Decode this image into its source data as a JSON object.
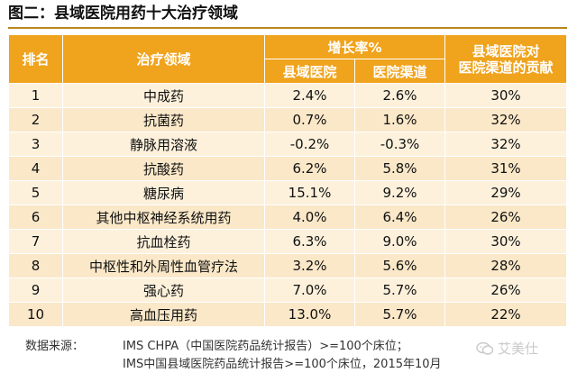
{
  "title": "图二：县域医院用药十大治疗领域",
  "table": {
    "headers": {
      "rank": "排名",
      "area": "治疗领域",
      "growth_group": "增长率%",
      "county_growth": "县域医院",
      "hospital_channel": "医院渠道",
      "contribution_line1": "县域医院对",
      "contribution_line2": "医院渠道的贡献"
    },
    "rows": [
      {
        "rank": "1",
        "area": "中成药",
        "county": "2.4%",
        "hospital": "2.6%",
        "contribution": "30%"
      },
      {
        "rank": "2",
        "area": "抗菌药",
        "county": "0.7%",
        "hospital": "1.6%",
        "contribution": "32%"
      },
      {
        "rank": "3",
        "area": "静脉用溶液",
        "county": "-0.2%",
        "hospital": "-0.3%",
        "contribution": "32%"
      },
      {
        "rank": "4",
        "area": "抗酸药",
        "county": "6.2%",
        "hospital": "5.8%",
        "contribution": "31%"
      },
      {
        "rank": "5",
        "area": "糖尿病",
        "county": "15.1%",
        "hospital": "9.2%",
        "contribution": "29%"
      },
      {
        "rank": "6",
        "area": "其他中枢神经系统用药",
        "county": "4.0%",
        "hospital": "6.4%",
        "contribution": "26%"
      },
      {
        "rank": "7",
        "area": "抗血栓药",
        "county": "6.3%",
        "hospital": "9.0%",
        "contribution": "30%"
      },
      {
        "rank": "8",
        "area": "中枢性和外周性血管疗法",
        "county": "3.2%",
        "hospital": "5.6%",
        "contribution": "28%"
      },
      {
        "rank": "9",
        "area": "强心药",
        "county": "7.0%",
        "hospital": "5.7%",
        "contribution": "26%"
      },
      {
        "rank": "10",
        "area": "高血压用药",
        "county": "13.0%",
        "hospital": "5.7%",
        "contribution": "22%"
      }
    ]
  },
  "source": {
    "label": "数据来源：",
    "line1": "IMS CHPA（中国医院药品统计报告）>=100个床位；",
    "line2": "IMS中国县域医院药品统计报告>=100个床位，2015年10月"
  },
  "watermark": {
    "text": "艾美仕",
    "icon": "wechat-logo-icon"
  }
}
